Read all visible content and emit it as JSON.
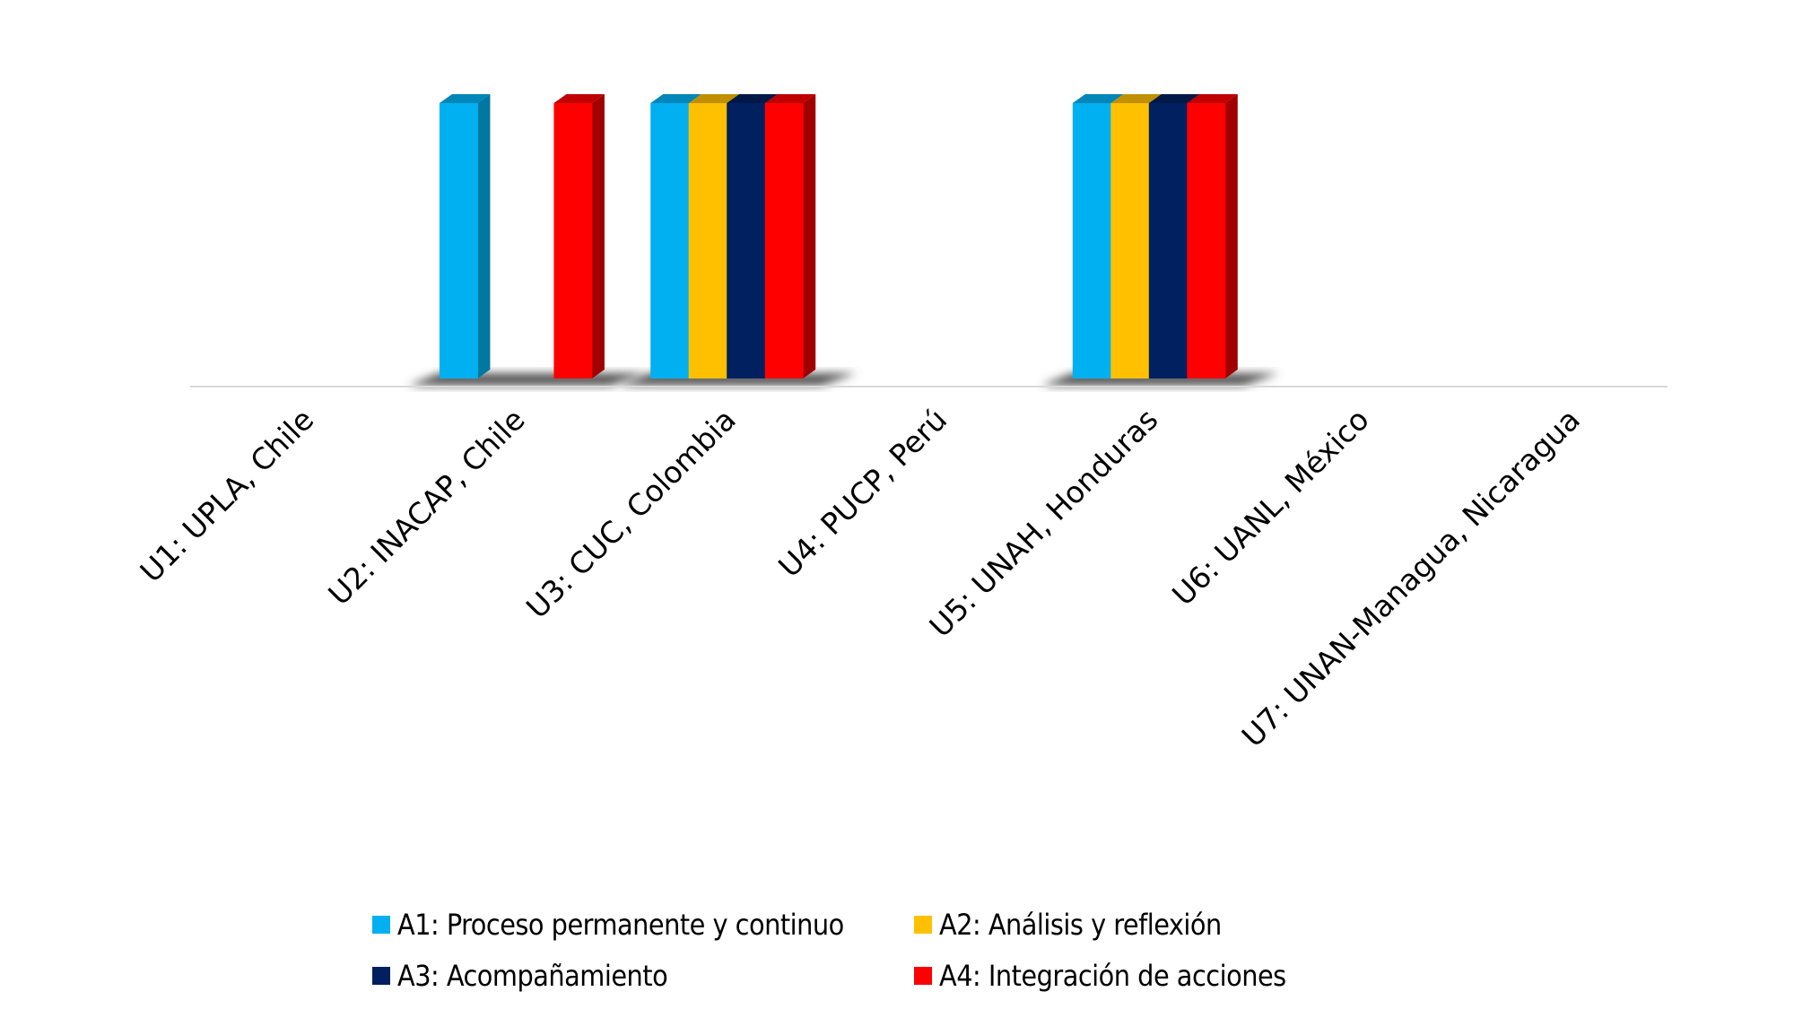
{
  "chart_data": {
    "type": "bar",
    "style": "3d-clustered-column",
    "title": "",
    "xlabel": "",
    "ylabel": "",
    "ylim": [
      0,
      1
    ],
    "grid": false,
    "legend_position": "bottom",
    "categories": [
      "U1: UPLA, Chile",
      "U2: INACAP, Chile",
      "U3: CUC, Colombia",
      "U4: PUCP, Perú",
      "U5: UNAH, Honduras",
      "U6: UANL, México",
      "U7: UNAN-Managua, Nicaragua"
    ],
    "series": [
      {
        "name": "A1: Proceso permanente y continuo",
        "color": "#00B0F0",
        "side": "#0077A0",
        "top": "#0086B8",
        "values": [
          0,
          1,
          1,
          0,
          1,
          0,
          0
        ]
      },
      {
        "name": "A2: Análisis y reflexión",
        "color": "#FFC000",
        "side": "#B08400",
        "top": "#C09000",
        "values": [
          0,
          0,
          1,
          0,
          1,
          0,
          0
        ]
      },
      {
        "name": "A3: Acompañamiento",
        "color": "#002060",
        "side": "#001440",
        "top": "#001848",
        "values": [
          0,
          0,
          1,
          0,
          1,
          0,
          0
        ]
      },
      {
        "name": "A4: Integración de acciones",
        "color": "#FF0000",
        "side": "#A00000",
        "top": "#C00000",
        "values": [
          0,
          1,
          1,
          0,
          1,
          0,
          0
        ]
      }
    ]
  }
}
